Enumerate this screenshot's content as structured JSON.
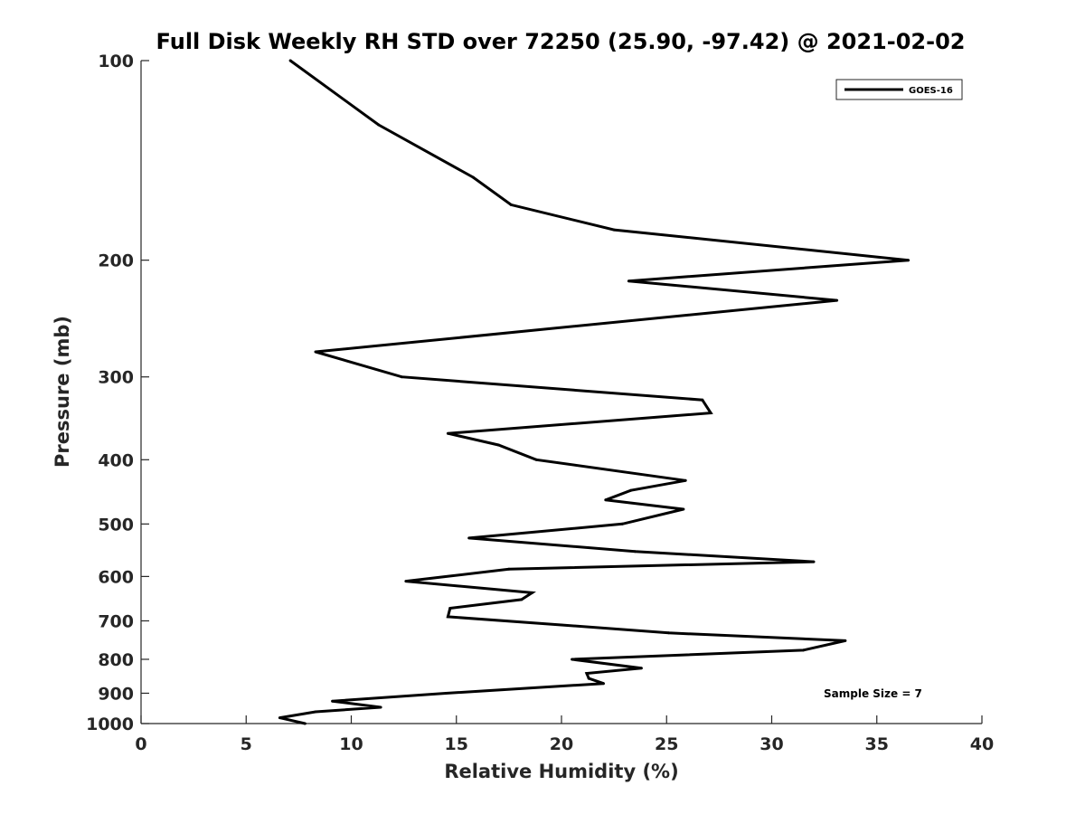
{
  "chart_data": {
    "type": "line",
    "title": "Full Disk Weekly RH STD over 72250 (25.90, -97.42) @ 2021-02-02",
    "xlabel": "Relative Humidity (%)",
    "ylabel": "Pressure (mb)",
    "xlim": [
      0,
      40
    ],
    "ylim": [
      100,
      1000
    ],
    "yscale": "log",
    "y_reversed": true,
    "xticks": [
      "0",
      "5",
      "10",
      "15",
      "20",
      "25",
      "30",
      "35",
      "40"
    ],
    "xtick_values": [
      0,
      5,
      10,
      15,
      20,
      25,
      30,
      35,
      40
    ],
    "yticks": [
      "100",
      "200",
      "300",
      "400",
      "500",
      "600",
      "700",
      "800",
      "900",
      "1000"
    ],
    "ytick_values": [
      100,
      200,
      300,
      400,
      500,
      600,
      700,
      800,
      900,
      1000
    ],
    "grid": false,
    "legend": {
      "position": "top-right",
      "entries": [
        "GOES-16"
      ]
    },
    "annotation": "Sample Size = 7",
    "series": [
      {
        "name": "GOES-16",
        "color": "#000000",
        "points": [
          [
            7.1,
            100
          ],
          [
            11.3,
            125
          ],
          [
            15.8,
            150
          ],
          [
            17.6,
            165
          ],
          [
            22.5,
            180
          ],
          [
            36.5,
            200
          ],
          [
            23.2,
            215
          ],
          [
            33.1,
            230
          ],
          [
            8.3,
            275
          ],
          [
            12.4,
            300
          ],
          [
            26.7,
            325
          ],
          [
            27.1,
            340
          ],
          [
            14.6,
            365
          ],
          [
            17.0,
            380
          ],
          [
            18.8,
            400
          ],
          [
            25.9,
            430
          ],
          [
            23.3,
            445
          ],
          [
            22.1,
            460
          ],
          [
            25.8,
            475
          ],
          [
            22.9,
            500
          ],
          [
            15.6,
            525
          ],
          [
            23.5,
            550
          ],
          [
            32.0,
            570
          ],
          [
            17.5,
            585
          ],
          [
            12.6,
            610
          ],
          [
            18.6,
            635
          ],
          [
            18.1,
            650
          ],
          [
            14.7,
            670
          ],
          [
            14.6,
            690
          ],
          [
            20.0,
            710
          ],
          [
            25.1,
            730
          ],
          [
            33.5,
            750
          ],
          [
            31.5,
            775
          ],
          [
            20.5,
            800
          ],
          [
            23.8,
            825
          ],
          [
            21.2,
            840
          ],
          [
            21.3,
            855
          ],
          [
            22.0,
            870
          ],
          [
            14.5,
            900
          ],
          [
            9.1,
            925
          ],
          [
            11.4,
            945
          ],
          [
            8.3,
            960
          ],
          [
            6.6,
            980
          ],
          [
            7.8,
            1000
          ]
        ]
      }
    ]
  }
}
